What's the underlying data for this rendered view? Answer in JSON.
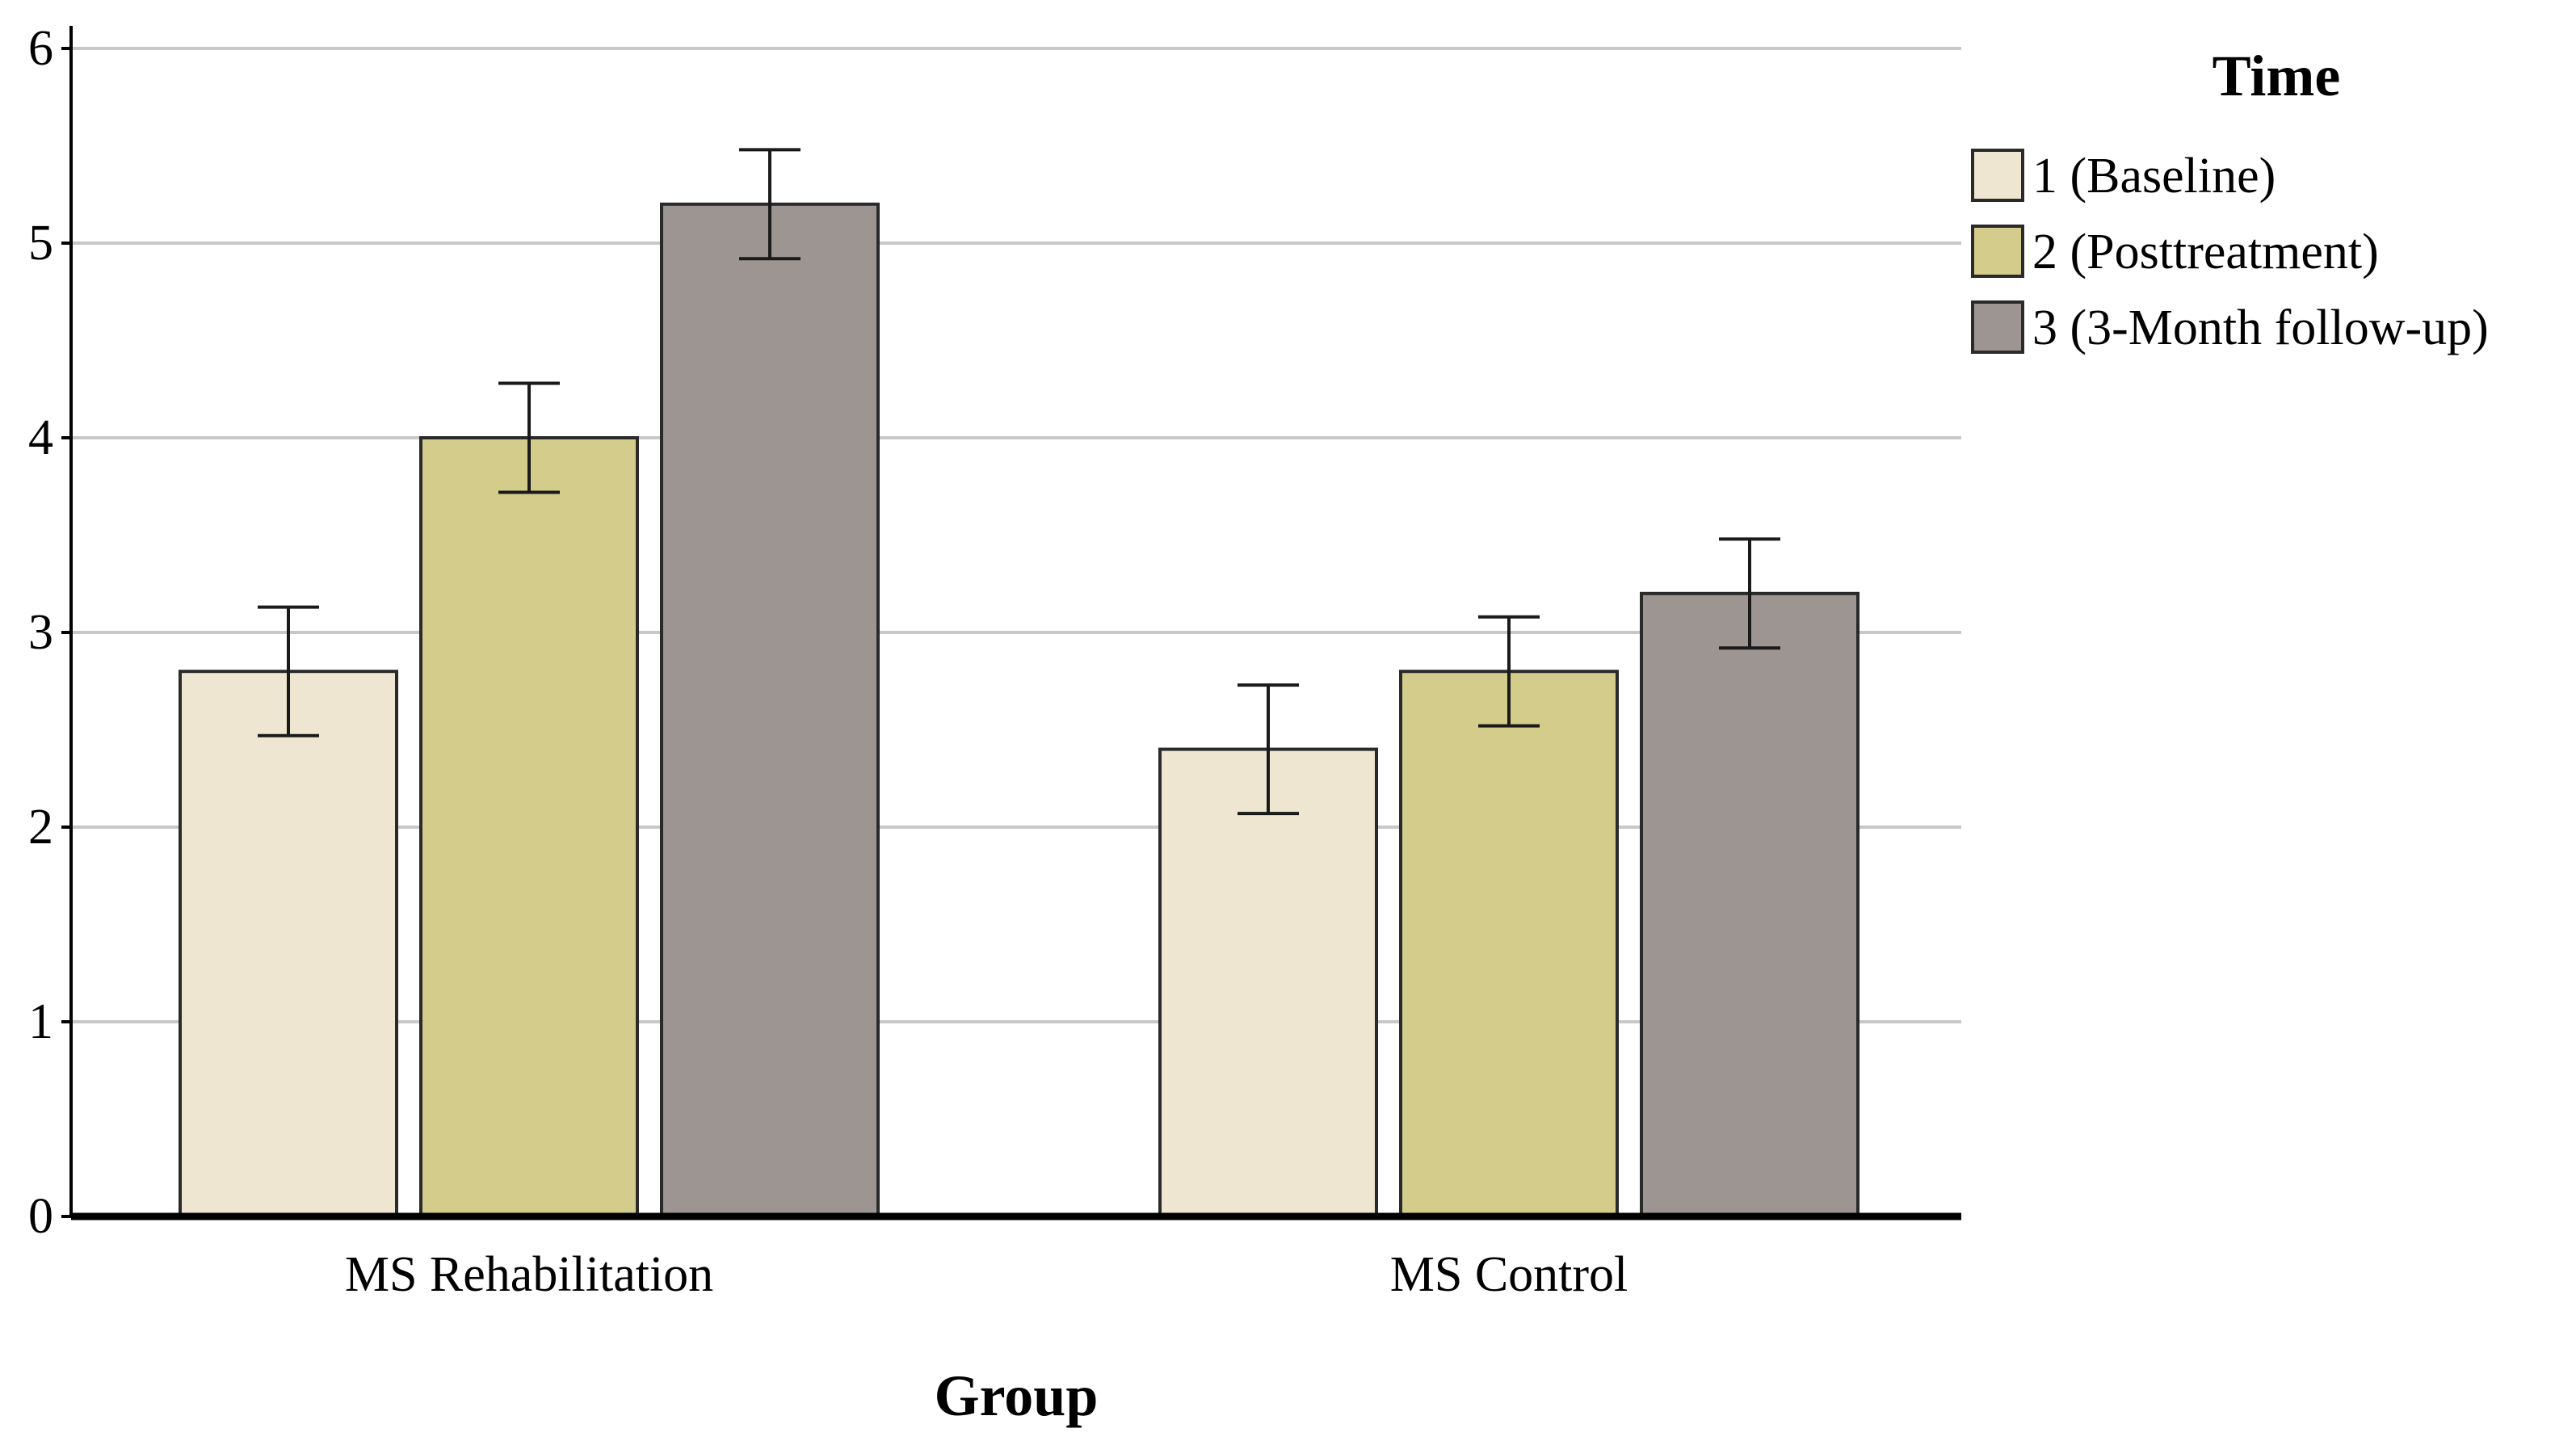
{
  "chart_data": {
    "type": "bar",
    "title": "",
    "xlabel": "Group",
    "ylabel": "",
    "categories": [
      "MS Rehabilitation",
      "MS Control"
    ],
    "series": [
      {
        "name": "1 (Baseline)",
        "values": [
          2.8,
          2.4
        ],
        "error_low": [
          2.47,
          2.07
        ],
        "error_high": [
          3.13,
          2.73
        ],
        "color": "#EEE6D0"
      },
      {
        "name": "2 (Posttreatment)",
        "values": [
          4.0,
          2.8
        ],
        "error_low": [
          3.72,
          2.52
        ],
        "error_high": [
          4.28,
          3.08
        ],
        "color": "#D3CC8A"
      },
      {
        "name": "3 (3-Month follow-up)",
        "values": [
          5.2,
          3.2
        ],
        "error_low": [
          4.92,
          2.92
        ],
        "error_high": [
          5.48,
          3.48
        ],
        "color": "#9C9592"
      }
    ],
    "ylim": [
      0,
      6
    ],
    "yticks": [
      0,
      1,
      2,
      3,
      4,
      5,
      6
    ],
    "grid": true,
    "legend": {
      "title": "Time",
      "position": "right"
    }
  }
}
